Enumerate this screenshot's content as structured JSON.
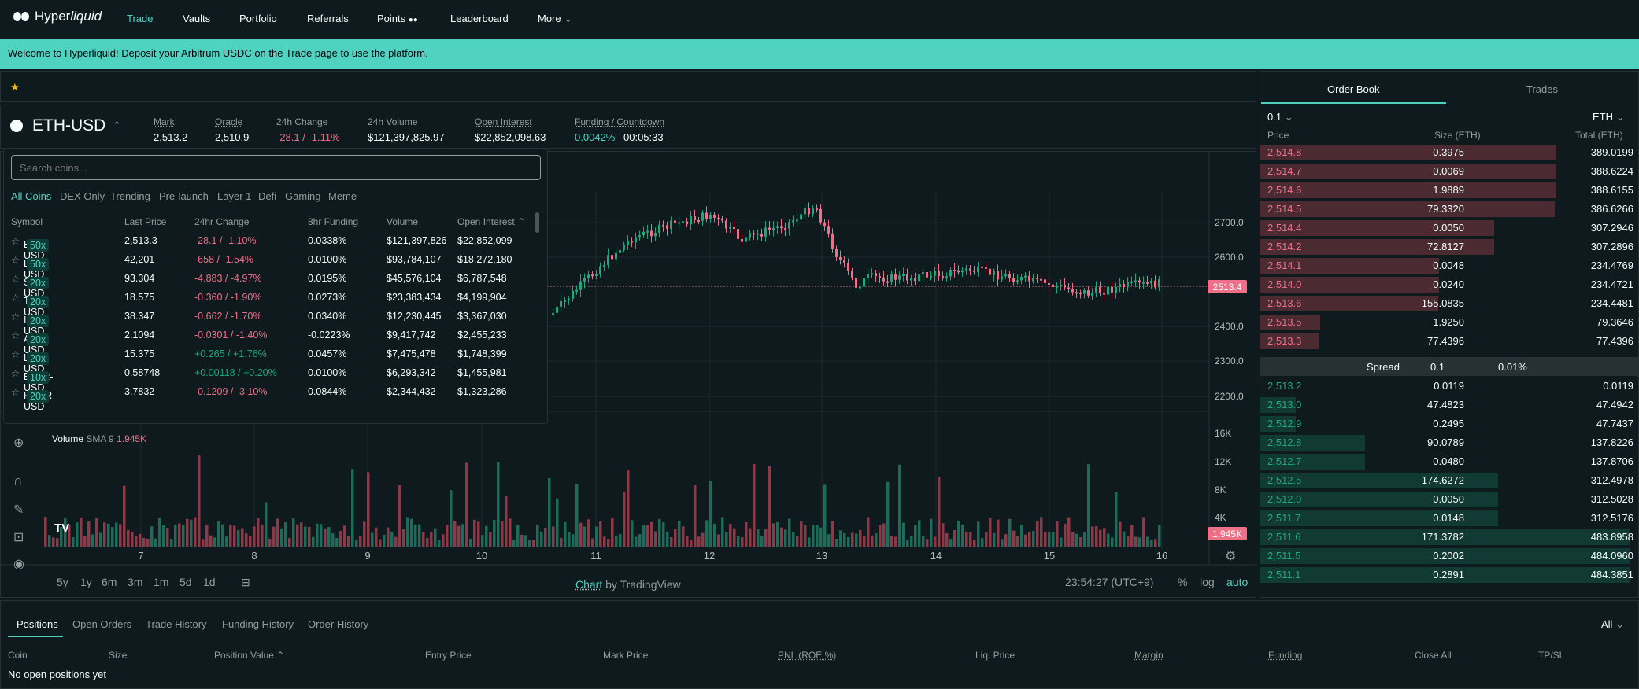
{
  "nav": {
    "logo": "Hyperliquid",
    "items": [
      "Trade",
      "Vaults",
      "Portfolio",
      "Referrals",
      "Points",
      "Leaderboard",
      "More"
    ]
  },
  "banner": "Welcome to Hyperliquid! Deposit your Arbitrum USDC on the Trade page to use the platform.",
  "favbar": {
    "star": "★"
  },
  "ticker": {
    "pair": "ETH-USD",
    "stats": [
      {
        "label": "Mark",
        "value": "2,513.2"
      },
      {
        "label": "Oracle",
        "value": "2,510.9"
      },
      {
        "label": "24h Change",
        "value": "-28.1 / -1.11%"
      },
      {
        "label": "24h Volume",
        "value": "$121,397,825.97"
      },
      {
        "label": "Open Interest",
        "value": "$22,852,098.63"
      },
      {
        "label": "Funding / Countdown",
        "value": "0.0042%",
        "extra": "00:05:33"
      }
    ]
  },
  "dropdown": {
    "placeholder": "Search coins...",
    "categories": [
      "All Coins",
      "DEX Only",
      "Trending",
      "Pre-launch",
      "Layer 1",
      "Defi",
      "Gaming",
      "Meme"
    ],
    "headers": [
      "Symbol",
      "Last Price",
      "24hr Change",
      "8hr Funding",
      "Volume",
      "Open Interest"
    ],
    "rows": [
      {
        "sym": "ETH-USD",
        "lev": "50x",
        "price": "2,513.3",
        "chg": "-28.1 / -1.10%",
        "neg": true,
        "fund": "0.0338%",
        "vol": "$121,397,826",
        "oi": "$22,852,099"
      },
      {
        "sym": "BTC-USD",
        "lev": "50x",
        "price": "42,201",
        "chg": "-658 / -1.54%",
        "neg": true,
        "fund": "0.0100%",
        "vol": "$93,784,107",
        "oi": "$18,272,180"
      },
      {
        "sym": "SOL-USD",
        "lev": "20x",
        "price": "93.304",
        "chg": "-4.883 / -4.97%",
        "neg": true,
        "fund": "0.0195%",
        "vol": "$45,576,104",
        "oi": "$6,787,548"
      },
      {
        "sym": "TIA-USD",
        "lev": "20x",
        "price": "18.575",
        "chg": "-0.360 / -1.90%",
        "neg": true,
        "fund": "0.0273%",
        "vol": "$23,383,434",
        "oi": "$4,199,904"
      },
      {
        "sym": "INJ-USD",
        "lev": "20x",
        "price": "38.347",
        "chg": "-0.662 / -1.70%",
        "neg": true,
        "fund": "0.0340%",
        "vol": "$12,230,445",
        "oi": "$3,367,030"
      },
      {
        "sym": "ARB-USD",
        "lev": "20x",
        "price": "2.1094",
        "chg": "-0.0301 / -1.40%",
        "neg": true,
        "fund": "-0.0223%",
        "vol": "$9,417,742",
        "oi": "$2,455,233"
      },
      {
        "sym": "LINK-USD",
        "lev": "20x",
        "price": "15.375",
        "chg": "+0.265 / +1.76%",
        "neg": false,
        "fund": "0.0457%",
        "vol": "$7,475,478",
        "oi": "$1,748,399"
      },
      {
        "sym": "BLUR-USD",
        "lev": "10x",
        "price": "0.58748",
        "chg": "+0.00118 / +0.20%",
        "neg": false,
        "fund": "0.0100%",
        "vol": "$6,293,342",
        "oi": "$1,455,981"
      },
      {
        "sym": "RNDR-USD",
        "lev": "20x",
        "price": "3.7832",
        "chg": "-0.1209 / -3.10%",
        "neg": true,
        "fund": "0.0844%",
        "vol": "$2,344,432",
        "oi": "$1,323,286"
      }
    ]
  },
  "chart": {
    "volume_label": "Volume",
    "sma": "SMA 9",
    "vol_value": "1.945K",
    "last_price": "2513.4",
    "y_ticks": [
      "2700.0",
      "2600.0",
      "2400.0",
      "2300.0",
      "2200.0"
    ],
    "vol_ticks": [
      "16K",
      "12K",
      "8K",
      "4K"
    ],
    "x_ticks": [
      "7",
      "8",
      "9",
      "10",
      "11",
      "12",
      "13",
      "14",
      "15",
      "16"
    ],
    "timeframes": [
      "5y",
      "1y",
      "6m",
      "3m",
      "1m",
      "5d",
      "1d"
    ],
    "clock": "23:54:27 (UTC+9)",
    "footer_chart": "Chart",
    "footer_by": " by TradingView",
    "pct": "%",
    "log": "log",
    "auto": "auto"
  },
  "orderbook": {
    "tabs": [
      "Order Book",
      "Trades"
    ],
    "tick": "0.1",
    "asset": "ETH",
    "headers": [
      "Price",
      "Size (ETH)",
      "Total (ETH)"
    ],
    "asks": [
      [
        "2,514.8",
        "0.3975",
        "389.0199"
      ],
      [
        "2,514.7",
        "0.0069",
        "388.6224"
      ],
      [
        "2,514.6",
        "1.9889",
        "388.6155"
      ],
      [
        "2,514.5",
        "79.3320",
        "386.6266"
      ],
      [
        "2,514.4",
        "0.0050",
        "307.2946"
      ],
      [
        "2,514.2",
        "72.8127",
        "307.2896"
      ],
      [
        "2,514.1",
        "0.0048",
        "234.4769"
      ],
      [
        "2,514.0",
        "0.0240",
        "234.4721"
      ],
      [
        "2,513.6",
        "155.0835",
        "234.4481"
      ],
      [
        "2,513.5",
        "1.9250",
        "79.3646"
      ],
      [
        "2,513.3",
        "77.4396",
        "77.4396"
      ]
    ],
    "spread": {
      "label": "Spread",
      "value": "0.1",
      "pct": "0.01%"
    },
    "bids": [
      [
        "2,513.2",
        "0.0119",
        "0.0119"
      ],
      [
        "2,513.0",
        "47.4823",
        "47.4942"
      ],
      [
        "2,512.9",
        "0.2495",
        "47.7437"
      ],
      [
        "2,512.8",
        "90.0789",
        "137.8226"
      ],
      [
        "2,512.7",
        "0.0480",
        "137.8706"
      ],
      [
        "2,512.5",
        "174.6272",
        "312.4978"
      ],
      [
        "2,512.0",
        "0.0050",
        "312.5028"
      ],
      [
        "2,511.7",
        "0.0148",
        "312.5176"
      ],
      [
        "2,511.6",
        "171.3782",
        "483.8958"
      ],
      [
        "2,511.5",
        "0.2002",
        "484.0960"
      ],
      [
        "2,511.1",
        "0.2891",
        "484.3851"
      ]
    ]
  },
  "bottom": {
    "tabs": [
      "Positions",
      "Open Orders",
      "Trade History",
      "Funding History",
      "Order History"
    ],
    "filter": "All",
    "headers": [
      "Coin",
      "Size",
      "Position Value",
      "Entry Price",
      "Mark Price",
      "PNL (ROE %)",
      "Liq. Price",
      "Margin",
      "Funding",
      "Close All",
      "TP/SL"
    ],
    "empty": "No open positions yet"
  }
}
